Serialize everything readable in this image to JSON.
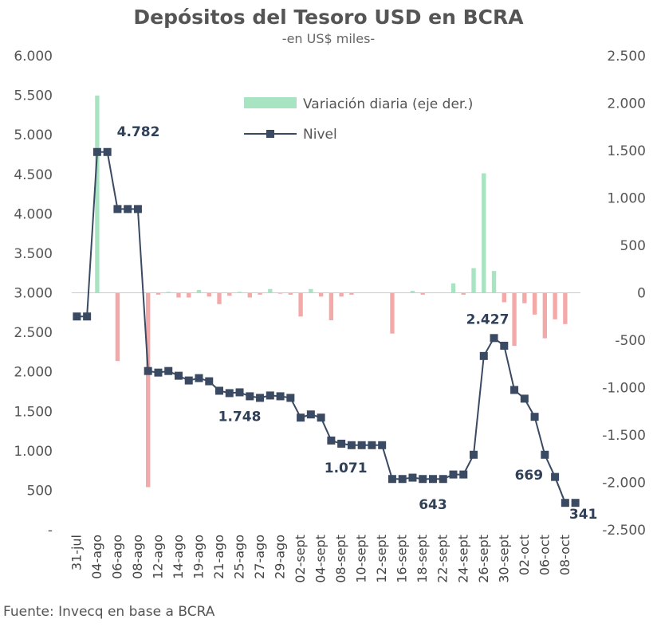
{
  "chart_data": {
    "type": "bar+line",
    "title": "Depósitos del Tesoro USD en BCRA",
    "subtitle": "-en US$ miles-",
    "source": "Fuente: Invecq en base a BCRA",
    "colors": {
      "line": "#3b4a63",
      "positive_bar": "#a8e4c1",
      "negative_bar": "#f4a9a9",
      "title": "#555555"
    },
    "y_left": {
      "ylim": [
        0,
        6000
      ],
      "ticks": [
        6000,
        5500,
        5000,
        4500,
        4000,
        3500,
        3000,
        2500,
        2000,
        1500,
        1000,
        500,
        0
      ],
      "tick_labels": [
        "6.000",
        "5.500",
        "5.000",
        "4.500",
        "4.000",
        "3.500",
        "3.000",
        "2.500",
        "2.000",
        "1.500",
        "1.000",
        "500",
        "-"
      ]
    },
    "y_right": {
      "ylim": [
        -2500,
        2500
      ],
      "ticks": [
        2500,
        2000,
        1500,
        1000,
        500,
        0,
        -500,
        -1000,
        -1500,
        -2000,
        -2500
      ],
      "tick_labels": [
        "2.500",
        "2.000",
        "1.500",
        "1.000",
        "500",
        "0",
        "-500",
        "-1.000",
        "-1.500",
        "-2.000",
        "-2.500"
      ]
    },
    "x_tick_labels": [
      {
        "index": 0,
        "label": "31-jul"
      },
      {
        "index": 2,
        "label": "04-ago"
      },
      {
        "index": 4,
        "label": "06-ago"
      },
      {
        "index": 6,
        "label": "08-ago"
      },
      {
        "index": 8,
        "label": "12-ago"
      },
      {
        "index": 10,
        "label": "14-ago"
      },
      {
        "index": 12,
        "label": "19-ago"
      },
      {
        "index": 14,
        "label": "21-ago"
      },
      {
        "index": 16,
        "label": "25-ago"
      },
      {
        "index": 18,
        "label": "27-ago"
      },
      {
        "index": 20,
        "label": "29-ago"
      },
      {
        "index": 22,
        "label": "02-sept"
      },
      {
        "index": 24,
        "label": "04-sept"
      },
      {
        "index": 26,
        "label": "08-sept"
      },
      {
        "index": 28,
        "label": "10-sept"
      },
      {
        "index": 30,
        "label": "12-sept"
      },
      {
        "index": 32,
        "label": "16-sept"
      },
      {
        "index": 34,
        "label": "18-sept"
      },
      {
        "index": 36,
        "label": "22-sept"
      },
      {
        "index": 38,
        "label": "24-sept"
      },
      {
        "index": 40,
        "label": "26-sept"
      },
      {
        "index": 42,
        "label": "30-sept"
      },
      {
        "index": 44,
        "label": "02-oct"
      },
      {
        "index": 46,
        "label": "06-oct"
      },
      {
        "index": 48,
        "label": "08-oct"
      }
    ],
    "legend": {
      "placement": "top-center",
      "bars_label": "Variación diaria (eje der.)",
      "line_label": "Nivel"
    },
    "series": [
      {
        "name": "Nivel",
        "type": "line",
        "axis": "left",
        "values": [
          2700,
          2700,
          4782,
          4782,
          4060,
          4060,
          4060,
          2010,
          1990,
          2010,
          1950,
          1890,
          1920,
          1880,
          1760,
          1730,
          1740,
          1690,
          1670,
          1700,
          1690,
          1670,
          1420,
          1460,
          1420,
          1130,
          1090,
          1071,
          1071,
          1071,
          1071,
          643,
          643,
          660,
          643,
          643,
          643,
          700,
          700,
          950,
          2200,
          2427,
          2330,
          1770,
          1660,
          1430,
          950,
          669,
          341,
          341
        ],
        "dashed_last_segment": true
      },
      {
        "name": "Variación diaria (eje der.)",
        "type": "bar",
        "axis": "right",
        "values": [
          0,
          0,
          2080,
          0,
          -720,
          0,
          0,
          -2050,
          -20,
          10,
          -50,
          -50,
          30,
          -40,
          -120,
          -30,
          10,
          -50,
          -20,
          40,
          -10,
          -20,
          -250,
          40,
          -40,
          -290,
          -40,
          -20,
          0,
          0,
          0,
          -430,
          0,
          20,
          -20,
          0,
          0,
          100,
          -20,
          260,
          1260,
          230,
          -100,
          -560,
          -110,
          -230,
          -480,
          -280,
          -330,
          0
        ]
      }
    ],
    "annotations": [
      {
        "index": 3,
        "text": "4.782"
      },
      {
        "index": 16,
        "text": "1.748"
      },
      {
        "index": 28,
        "text": "1.071"
      },
      {
        "index": 35,
        "text": "643"
      },
      {
        "index": 41,
        "text": "2.427"
      },
      {
        "index": 46,
        "text": "669"
      },
      {
        "index": 49,
        "text": "341"
      }
    ]
  }
}
